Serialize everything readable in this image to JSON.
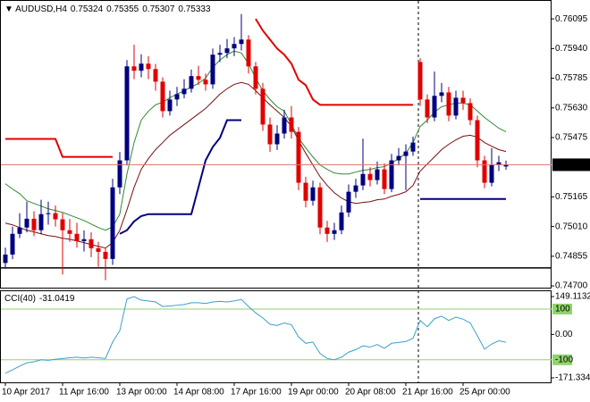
{
  "chart_data": {
    "type": "candlestick",
    "title": "AUDUSD,H4",
    "categories": [
      "10 Apr 2017",
      null,
      null,
      null,
      null,
      null,
      null,
      null,
      "11 Apr 16:00",
      null,
      null,
      null,
      null,
      null,
      null,
      null,
      "13 Apr 00:00",
      null,
      null,
      null,
      null,
      null,
      null,
      null,
      "14 Apr 08:00",
      null,
      null,
      null,
      null,
      null,
      null,
      null,
      "17 Apr 16:00",
      null,
      null,
      null,
      null,
      null,
      null,
      null,
      "19 Apr 00:00",
      null,
      null,
      null,
      null,
      null,
      null,
      null,
      "20 Apr 08:00",
      null,
      null,
      null,
      null,
      null,
      null,
      null,
      "21 Apr 16:00",
      null,
      null,
      null,
      null,
      null,
      null,
      null,
      "25 Apr 00:00",
      null,
      null,
      null,
      null,
      null,
      null
    ],
    "open": [
      0.7482,
      0.74864,
      0.74972,
      0.75005,
      0.75051,
      0.74991,
      0.75075,
      0.7508,
      0.75048,
      0.74991,
      0.74972,
      0.74934,
      0.74944,
      0.74897,
      0.74878,
      0.74841,
      0.75215,
      0.75356,
      0.75847,
      0.75824,
      0.75861,
      0.75833,
      0.75767,
      0.75613,
      0.75674,
      0.75702,
      0.7573,
      0.75796,
      0.75777,
      0.75753,
      0.75908,
      0.75917,
      0.75941,
      0.75964,
      0.75987,
      0.75847,
      0.7573,
      0.75543,
      0.7544,
      0.75496,
      0.7558,
      0.75505,
      0.75239,
      0.75145,
      0.75215,
      0.75005,
      0.74972,
      0.74991,
      0.75084,
      0.75192,
      0.75225,
      0.75285,
      0.75253,
      0.75309,
      0.75206,
      0.75356,
      0.75379,
      0.75402,
      0.7587,
      0.75674,
      0.7558,
      0.75693,
      0.75711,
      0.7559,
      0.75683,
      0.75655,
      0.75566,
      0.75356,
      0.75239,
      0.75332,
      0.75324
    ],
    "high": [
      0.749,
      0.7501,
      0.7508,
      0.7514,
      0.7509,
      0.7515,
      0.7514,
      0.7512,
      0.7508,
      0.7505,
      0.7503,
      0.7499,
      0.7498,
      0.7493,
      0.749,
      0.7526,
      0.754,
      0.7588,
      0.7596,
      0.7591,
      0.759,
      0.7586,
      0.7579,
      0.7572,
      0.7574,
      0.7578,
      0.7583,
      0.7585,
      0.7581,
      0.7594,
      0.7596,
      0.7599,
      0.76,
      0.7612,
      0.7601,
      0.7587,
      0.7576,
      0.7558,
      0.7554,
      0.7562,
      0.7564,
      0.7553,
      0.7527,
      0.7525,
      0.7524,
      0.7504,
      0.7503,
      0.7512,
      0.7523,
      0.7526,
      0.7547,
      0.7532,
      0.7535,
      0.7534,
      0.7539,
      0.7542,
      0.7544,
      0.7548,
      0.7589,
      0.757,
      0.7582,
      0.7576,
      0.7574,
      0.7572,
      0.7572,
      0.7568,
      0.7559,
      0.7538,
      0.7542,
      0.7538,
      0.75355
    ],
    "low": [
      0.7479,
      0.7484,
      0.7495,
      0.7498,
      0.7496,
      0.7497,
      0.7502,
      0.7501,
      0.7476,
      0.7493,
      0.749,
      0.7488,
      0.7485,
      0.748,
      0.7473,
      0.7481,
      0.7518,
      0.7533,
      0.7578,
      0.7579,
      0.7578,
      0.7572,
      0.7558,
      0.7559,
      0.7564,
      0.7568,
      0.7571,
      0.7575,
      0.7572,
      0.7573,
      0.7587,
      0.7589,
      0.759,
      0.7593,
      0.7581,
      0.757,
      0.7551,
      0.754,
      0.7541,
      0.7547,
      0.7547,
      0.752,
      0.7511,
      0.7512,
      0.7497,
      0.7493,
      0.7494,
      0.7497,
      0.7506,
      0.7516,
      0.752,
      0.7522,
      0.7523,
      0.7518,
      0.7519,
      0.7533,
      0.752,
      0.7538,
      0.7564,
      0.7555,
      0.7556,
      0.7566,
      0.7556,
      0.7557,
      0.7562,
      0.7554,
      0.7532,
      0.7521,
      0.7522,
      0.753,
      0.75307
    ],
    "close": [
      0.74864,
      0.74972,
      0.75005,
      0.75051,
      0.74991,
      0.75075,
      0.7508,
      0.75048,
      0.74991,
      0.74972,
      0.74934,
      0.74944,
      0.74897,
      0.74878,
      0.74841,
      0.75215,
      0.75356,
      0.75847,
      0.75824,
      0.75861,
      0.75833,
      0.75767,
      0.75613,
      0.75674,
      0.75702,
      0.7573,
      0.75796,
      0.75777,
      0.75753,
      0.75908,
      0.75917,
      0.75941,
      0.75964,
      0.75987,
      0.75847,
      0.7573,
      0.75543,
      0.7544,
      0.75496,
      0.7558,
      0.75505,
      0.75239,
      0.75145,
      0.75215,
      0.75005,
      0.74972,
      0.74991,
      0.75084,
      0.75192,
      0.75225,
      0.75285,
      0.75253,
      0.75309,
      0.75206,
      0.75356,
      0.75379,
      0.75402,
      0.75449,
      0.75674,
      0.7558,
      0.75693,
      0.75711,
      0.7559,
      0.75683,
      0.75655,
      0.75566,
      0.75356,
      0.75239,
      0.75332,
      0.75346,
      0.75333
    ],
    "up_color": "#000080",
    "down_color": "#e00000",
    "price_line_color": "#e07070",
    "ylim": [
      0.74691,
      0.76189
    ],
    "yticks": [
      0.76095,
      {
        "value": 0.7594,
        "label": "0.75940"
      },
      0.75785,
      {
        "value": 0.7563,
        "label": "0.75630"
      },
      0.75475,
      0.75165,
      {
        "value": 0.7501,
        "label": "0.75010"
      },
      0.74855,
      {
        "value": 0.747,
        "label": "0.74700"
      }
    ],
    "overlays": [
      {
        "color": "#2e8b2e",
        "values": [
          0.75234,
          0.75206,
          0.75182,
          0.75145,
          0.75131,
          0.75117,
          0.75103,
          0.75094,
          0.75084,
          0.7507,
          0.75056,
          0.75042,
          0.75023,
          0.75005,
          0.74991,
          0.75009,
          0.75075,
          0.75285,
          0.75449,
          0.75566,
          0.75613,
          0.75646,
          0.7566,
          0.75683,
          0.75702,
          0.7572,
          0.75739,
          0.75758,
          0.75786,
          0.75842,
          0.7588,
          0.75908,
          0.75927,
          0.75917,
          0.75861,
          0.75786,
          0.7572,
          0.75674,
          0.75636,
          0.75613,
          0.75543,
          0.75473,
          0.75421,
          0.75374,
          0.75332,
          0.75309,
          0.7529,
          0.75285,
          0.75285,
          0.75295,
          0.75304,
          0.75309,
          0.75318,
          0.75323,
          0.75342,
          0.75365,
          0.75393,
          0.75449,
          0.75533,
          0.75566,
          0.75608,
          0.75636,
          0.75646,
          0.75655,
          0.75655,
          0.75646,
          0.75613,
          0.7558,
          0.75552,
          0.75524,
          0.75505
        ]
      },
      {
        "color": "#7a1010",
        "values": [
          0.75028,
          0.75019,
          0.75005,
          0.74991,
          0.74982,
          0.74972,
          0.74963,
          0.74958,
          0.74949,
          0.74944,
          0.74935,
          0.74926,
          0.74916,
          0.74907,
          0.74898,
          0.74926,
          0.74991,
          0.75098,
          0.75215,
          0.75309,
          0.75365,
          0.75412,
          0.75449,
          0.75487,
          0.75515,
          0.75543,
          0.75571,
          0.75599,
          0.75627,
          0.75664,
          0.75702,
          0.7573,
          0.75753,
          0.75763,
          0.75753,
          0.7572,
          0.75683,
          0.75646,
          0.75613,
          0.7558,
          0.75533,
          0.75459,
          0.75393,
          0.75332,
          0.75271,
          0.75225,
          0.75187,
          0.75159,
          0.7514,
          0.75131,
          0.75136,
          0.7514,
          0.7515,
          0.75154,
          0.75168,
          0.75178,
          0.75192,
          0.75225,
          0.753,
          0.75337,
          0.75374,
          0.75412,
          0.7544,
          0.75463,
          0.75482,
          0.75487,
          0.75477,
          0.75449,
          0.7543,
          0.75412,
          0.75402
        ]
      },
      {
        "color": "#e00000",
        "values": [
          0.75468,
          0.75468,
          0.75468,
          0.75468,
          0.75468,
          0.75468,
          0.75468,
          0.75468,
          0.75374,
          0.75374,
          0.75374,
          0.75374,
          0.75374,
          0.75374,
          0.75374,
          0.75374,
          null,
          null,
          null,
          null,
          null,
          null,
          null,
          null,
          null,
          null,
          null,
          null,
          null,
          null,
          null,
          null,
          null,
          null,
          null,
          0.76095,
          0.76034,
          0.75987,
          0.7594,
          0.75908,
          0.75861,
          0.75777,
          0.75749,
          0.75674,
          0.75646,
          0.75646,
          0.75646,
          0.75646,
          0.75646,
          0.75646,
          0.75646,
          0.75646,
          0.75646,
          0.75646,
          0.75646,
          0.75646,
          0.75646,
          0.75646,
          null,
          null,
          null,
          null,
          null,
          null,
          null,
          null,
          null,
          null,
          null,
          null,
          null
        ]
      },
      {
        "color": "#000080",
        "values": [
          null,
          null,
          null,
          null,
          null,
          null,
          null,
          null,
          null,
          null,
          null,
          null,
          null,
          null,
          null,
          null,
          0.74972,
          0.74991,
          0.75037,
          0.75065,
          0.75075,
          0.75075,
          0.75075,
          0.75075,
          0.75075,
          0.75075,
          0.75075,
          0.75215,
          0.75356,
          0.75426,
          0.75473,
          0.75566,
          0.75566,
          0.75566,
          null,
          null,
          null,
          null,
          null,
          null,
          null,
          null,
          null,
          null,
          null,
          null,
          null,
          null,
          null,
          null,
          null,
          null,
          null,
          null,
          null,
          null,
          null,
          null,
          0.75154,
          0.75154,
          0.75154,
          0.75154,
          0.75154,
          0.75154,
          0.75154,
          0.75154,
          0.75154,
          0.75154,
          0.75154,
          0.75154,
          0.75154
        ]
      }
    ],
    "levels": [
      {
        "value": 0.74794,
        "color": "#000000"
      }
    ],
    "indicator": {
      "name": "CCI(40)",
      "color": "#3aa0c8",
      "level_color": "#8fd36a",
      "values": [
        -153,
        -140,
        -125,
        -112,
        -108,
        -100,
        -102,
        -98,
        -95,
        -92,
        -90,
        -93,
        -90,
        -92,
        -95,
        -30,
        15,
        140,
        149,
        135,
        132,
        128,
        110,
        112,
        115,
        118,
        125,
        125,
        122,
        128,
        130,
        128,
        132,
        138,
        110,
        85,
        65,
        40,
        35,
        45,
        38,
        -10,
        -35,
        -30,
        -75,
        -95,
        -100,
        -90,
        -70,
        -60,
        -45,
        -50,
        -40,
        -55,
        -35,
        -32,
        -28,
        -15,
        55,
        30,
        62,
        72,
        55,
        68,
        60,
        45,
        -5,
        -58,
        -38,
        -25,
        -31.0419
      ],
      "ylim": [
        -171.334,
        149.1132
      ],
      "yticks": [
        149.1132,
        {
          "value": 0,
          "label": "0.00"
        },
        -171.334
      ],
      "levels": [
        100,
        -100
      ]
    }
  }
}
